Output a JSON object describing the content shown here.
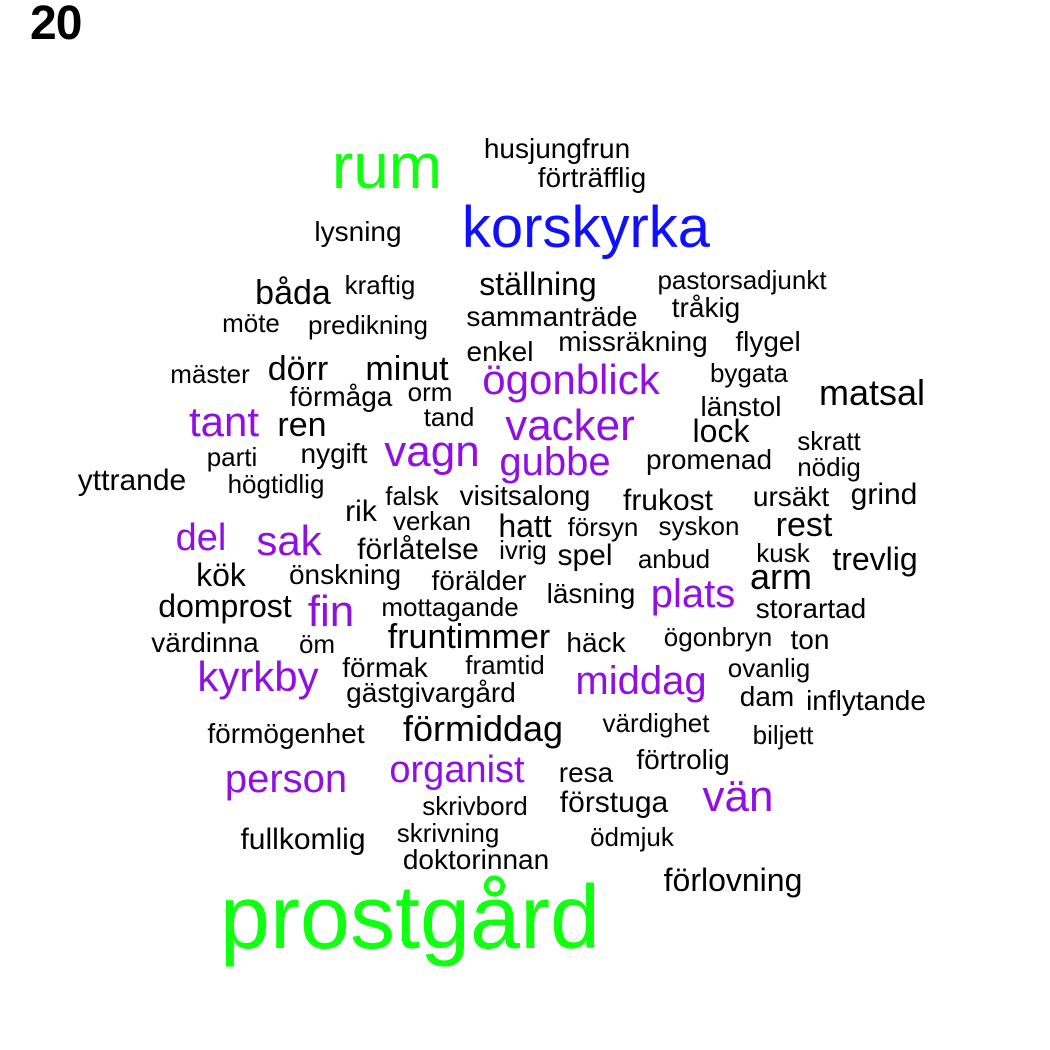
{
  "page_number": "20",
  "colors": {
    "green": "#11ff11",
    "blue": "#1010ff",
    "purple": "#8f10e0",
    "black": "#000000"
  },
  "words": [
    {
      "text": "prostgård",
      "color": "green"
    },
    {
      "text": "rum",
      "color": "green"
    },
    {
      "text": "korskyrka",
      "color": "blue"
    },
    {
      "text": "husjungfrun",
      "color": "black"
    },
    {
      "text": "förträfflig",
      "color": "black"
    },
    {
      "text": "lysning",
      "color": "black"
    },
    {
      "text": "båda",
      "color": "black"
    },
    {
      "text": "kraftig",
      "color": "black"
    },
    {
      "text": "ställning",
      "color": "black"
    },
    {
      "text": "pastorsadjunkt",
      "color": "black"
    },
    {
      "text": "tråkig",
      "color": "black"
    },
    {
      "text": "möte",
      "color": "black"
    },
    {
      "text": "predikning",
      "color": "black"
    },
    {
      "text": "sammanträde",
      "color": "black"
    },
    {
      "text": "missräkning",
      "color": "black"
    },
    {
      "text": "flygel",
      "color": "black"
    },
    {
      "text": "enkel",
      "color": "black"
    },
    {
      "text": "mäster",
      "color": "black"
    },
    {
      "text": "dörr",
      "color": "black"
    },
    {
      "text": "minut",
      "color": "black"
    },
    {
      "text": "ögonblick",
      "color": "purple"
    },
    {
      "text": "bygata",
      "color": "black"
    },
    {
      "text": "förmåga",
      "color": "black"
    },
    {
      "text": "orm",
      "color": "black"
    },
    {
      "text": "matsal",
      "color": "black"
    },
    {
      "text": "tant",
      "color": "purple"
    },
    {
      "text": "ren",
      "color": "black"
    },
    {
      "text": "tand",
      "color": "black"
    },
    {
      "text": "vacker",
      "color": "purple"
    },
    {
      "text": "länstol",
      "color": "black"
    },
    {
      "text": "lock",
      "color": "black"
    },
    {
      "text": "skratt",
      "color": "black"
    },
    {
      "text": "vagn",
      "color": "purple"
    },
    {
      "text": "parti",
      "color": "black"
    },
    {
      "text": "nygift",
      "color": "black"
    },
    {
      "text": "gubbe",
      "color": "purple"
    },
    {
      "text": "promenad",
      "color": "black"
    },
    {
      "text": "nödig",
      "color": "black"
    },
    {
      "text": "yttrande",
      "color": "black"
    },
    {
      "text": "högtidlig",
      "color": "black"
    },
    {
      "text": "falsk",
      "color": "black"
    },
    {
      "text": "visitsalong",
      "color": "black"
    },
    {
      "text": "frukost",
      "color": "black"
    },
    {
      "text": "ursäkt",
      "color": "black"
    },
    {
      "text": "grind",
      "color": "black"
    },
    {
      "text": "rik",
      "color": "black"
    },
    {
      "text": "verkan",
      "color": "black"
    },
    {
      "text": "hatt",
      "color": "black"
    },
    {
      "text": "försyn",
      "color": "black"
    },
    {
      "text": "syskon",
      "color": "black"
    },
    {
      "text": "rest",
      "color": "black"
    },
    {
      "text": "del",
      "color": "purple"
    },
    {
      "text": "sak",
      "color": "purple"
    },
    {
      "text": "förlåtelse",
      "color": "black"
    },
    {
      "text": "ivrig",
      "color": "black"
    },
    {
      "text": "spel",
      "color": "black"
    },
    {
      "text": "anbud",
      "color": "black"
    },
    {
      "text": "kusk",
      "color": "black"
    },
    {
      "text": "trevlig",
      "color": "black"
    },
    {
      "text": "kök",
      "color": "black"
    },
    {
      "text": "önskning",
      "color": "black"
    },
    {
      "text": "förälder",
      "color": "black"
    },
    {
      "text": "arm",
      "color": "black"
    },
    {
      "text": "domprost",
      "color": "black"
    },
    {
      "text": "fin",
      "color": "purple"
    },
    {
      "text": "mottagande",
      "color": "black"
    },
    {
      "text": "läsning",
      "color": "black"
    },
    {
      "text": "plats",
      "color": "purple"
    },
    {
      "text": "storartad",
      "color": "black"
    },
    {
      "text": "värdinna",
      "color": "black"
    },
    {
      "text": "öm",
      "color": "black"
    },
    {
      "text": "fruntimmer",
      "color": "black"
    },
    {
      "text": "häck",
      "color": "black"
    },
    {
      "text": "ögonbryn",
      "color": "black"
    },
    {
      "text": "ton",
      "color": "black"
    },
    {
      "text": "kyrkby",
      "color": "purple"
    },
    {
      "text": "förmak",
      "color": "black"
    },
    {
      "text": "framtid",
      "color": "black"
    },
    {
      "text": "middag",
      "color": "purple"
    },
    {
      "text": "ovanlig",
      "color": "black"
    },
    {
      "text": "gästgivargård",
      "color": "black"
    },
    {
      "text": "dam",
      "color": "black"
    },
    {
      "text": "inflytande",
      "color": "black"
    },
    {
      "text": "förmögenhet",
      "color": "black"
    },
    {
      "text": "förmiddag",
      "color": "black"
    },
    {
      "text": "värdighet",
      "color": "black"
    },
    {
      "text": "biljett",
      "color": "black"
    },
    {
      "text": "förtrolig",
      "color": "black"
    },
    {
      "text": "person",
      "color": "purple"
    },
    {
      "text": "organist",
      "color": "purple"
    },
    {
      "text": "resa",
      "color": "black"
    },
    {
      "text": "vän",
      "color": "purple"
    },
    {
      "text": "skrivbord",
      "color": "black"
    },
    {
      "text": "förstuga",
      "color": "black"
    },
    {
      "text": "fullkomlig",
      "color": "black"
    },
    {
      "text": "skrivning",
      "color": "black"
    },
    {
      "text": "ödmjuk",
      "color": "black"
    },
    {
      "text": "doktorinnan",
      "color": "black"
    },
    {
      "text": "förlovning",
      "color": "black"
    }
  ]
}
